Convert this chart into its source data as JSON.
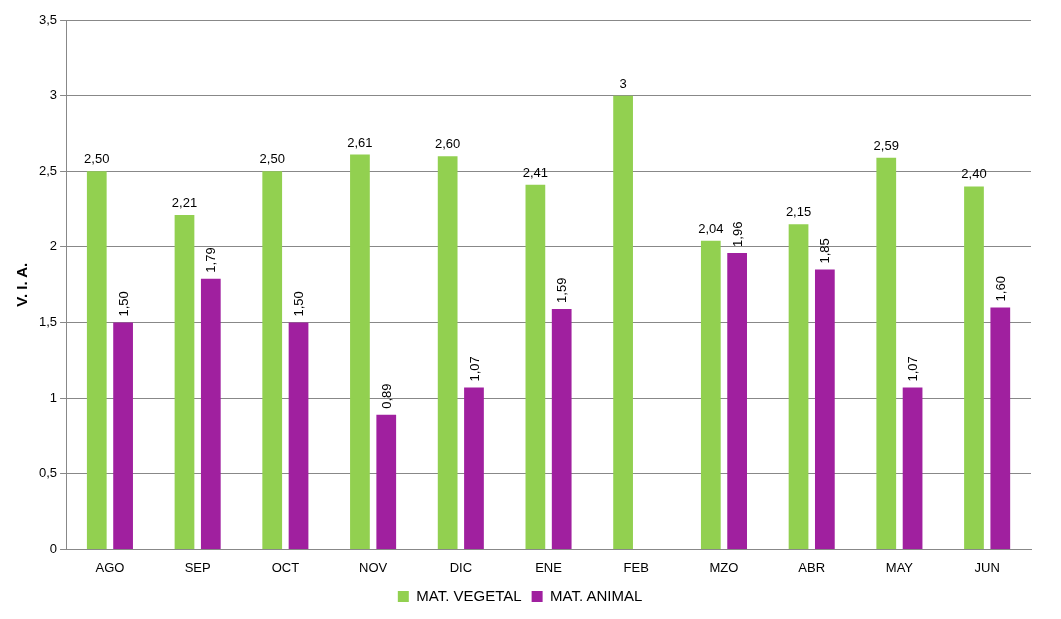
{
  "chart_data": {
    "type": "bar",
    "ylabel": "V. I. A.",
    "categories": [
      "AGO",
      "SEP",
      "OCT",
      "NOV",
      "DIC",
      "ENE",
      "FEB",
      "MZO",
      "ABR",
      "MAY",
      "JUN"
    ],
    "series": [
      {
        "name": "MAT. VEGETAL",
        "color": "#92d050",
        "values": [
          2.5,
          2.21,
          2.5,
          2.61,
          2.6,
          2.41,
          3,
          2.04,
          2.15,
          2.59,
          2.4
        ],
        "value_labels": [
          "2,50",
          "2,21",
          "2,50",
          "2,61",
          "2,60",
          "2,41",
          "3",
          "2,04",
          "2,15",
          "2,59",
          "2,40"
        ]
      },
      {
        "name": "MAT. ANIMAL",
        "color": "#a0209f",
        "values": [
          1.5,
          1.79,
          1.5,
          0.89,
          1.07,
          1.59,
          null,
          1.96,
          1.85,
          1.07,
          1.6
        ],
        "value_labels": [
          "1,50",
          "1,79",
          "1,50",
          "0,89",
          "1,07",
          "1,59",
          null,
          "1,96",
          "1,85",
          "1,07",
          "1,60"
        ]
      }
    ],
    "ylim": [
      0,
      3.5
    ],
    "yticks": [
      0,
      {
        "value": 0.5,
        "label": "0,5"
      },
      1,
      {
        "value": 1.5,
        "label": "1,5"
      },
      2,
      {
        "value": 2.5,
        "label": "2,5"
      },
      3,
      {
        "value": 3.5,
        "label": "3,5"
      }
    ],
    "grid": "y",
    "legend": "bottom"
  }
}
